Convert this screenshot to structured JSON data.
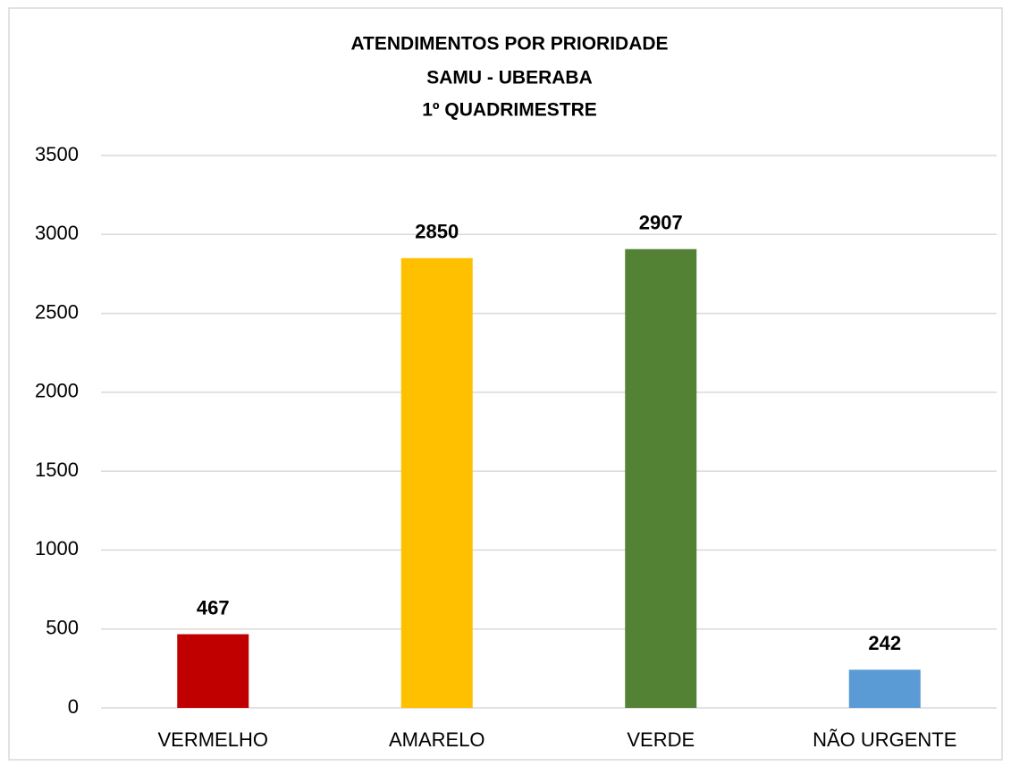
{
  "chart_data": {
    "type": "bar",
    "title": "ATENDIMENTOS POR PRIORIDADE",
    "subtitle": [
      "SAMU - UBERABA",
      "1º QUADRIMESTRE"
    ],
    "categories": [
      "VERMELHO",
      "AMARELO",
      "VERDE",
      "NÃO URGENTE"
    ],
    "values": [
      467,
      2850,
      2907,
      242
    ],
    "colors": [
      "#c00000",
      "#ffc000",
      "#548235",
      "#5b9bd5"
    ],
    "ylim": [
      0,
      3500
    ],
    "yticks": [
      0,
      500,
      1000,
      1500,
      2000,
      2500,
      3000,
      3500
    ],
    "grid": true
  }
}
